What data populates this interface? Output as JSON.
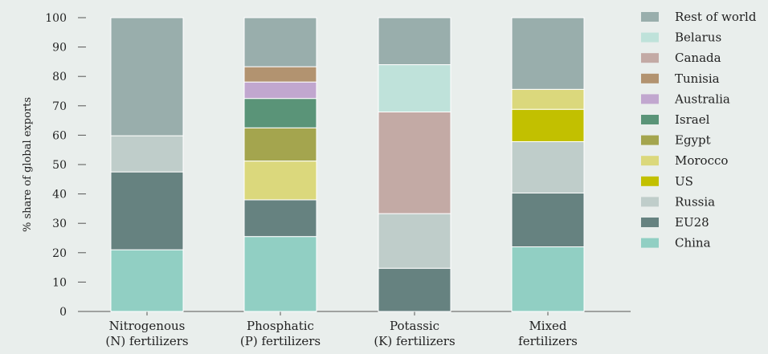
{
  "chart_data": {
    "type": "bar",
    "stacked": true,
    "ylabel": "% share of global exports",
    "ylim": [
      0,
      100
    ],
    "yticks": [
      0,
      10,
      20,
      30,
      40,
      50,
      60,
      70,
      80,
      90,
      100
    ],
    "categories": [
      [
        "Nitrogenous",
        "(N) fertilizers"
      ],
      [
        "Phosphatic",
        "(P) fertilizers"
      ],
      [
        "Potassic",
        "(K) fertilizers"
      ],
      [
        "Mixed",
        "fertilizers"
      ]
    ],
    "series": [
      {
        "name": "China",
        "color": "#91cfc3",
        "values": [
          21,
          25.5,
          0,
          22
        ]
      },
      {
        "name": "EU28",
        "color": "#668280",
        "values": [
          26.5,
          12.5,
          14.7,
          18.3
        ]
      },
      {
        "name": "Russia",
        "color": "#bfcdca",
        "values": [
          12.3,
          0,
          18.6,
          17.5
        ]
      },
      {
        "name": "US",
        "color": "#c2c000",
        "values": [
          0,
          0,
          0,
          11
        ]
      },
      {
        "name": "Morocco",
        "color": "#dbd87c",
        "values": [
          0,
          13.2,
          0,
          6.8
        ]
      },
      {
        "name": "Egypt",
        "color": "#a4a54e",
        "values": [
          0,
          11.3,
          0,
          0
        ]
      },
      {
        "name": "Israel",
        "color": "#5a9478",
        "values": [
          0,
          10,
          0,
          0
        ]
      },
      {
        "name": "Australia",
        "color": "#c1a7cf",
        "values": [
          0,
          5.6,
          0,
          0
        ]
      },
      {
        "name": "Tunisia",
        "color": "#b29370",
        "values": [
          0,
          5.2,
          0,
          0
        ]
      },
      {
        "name": "Canada",
        "color": "#c3aaa5",
        "values": [
          0,
          0,
          34.6,
          0
        ]
      },
      {
        "name": "Belarus",
        "color": "#bfe2da",
        "values": [
          0,
          0,
          16.1,
          0
        ]
      },
      {
        "name": "Rest of world",
        "color": "#99aeac",
        "values": [
          40.2,
          16.7,
          16,
          24.4
        ]
      }
    ],
    "legend": {
      "placement": "right",
      "order": [
        "Rest of world",
        "Belarus",
        "Canada",
        "Tunisia",
        "Australia",
        "Israel",
        "Egypt",
        "Morocco",
        "US",
        "Russia",
        "EU28",
        "China"
      ]
    },
    "grid": false
  }
}
